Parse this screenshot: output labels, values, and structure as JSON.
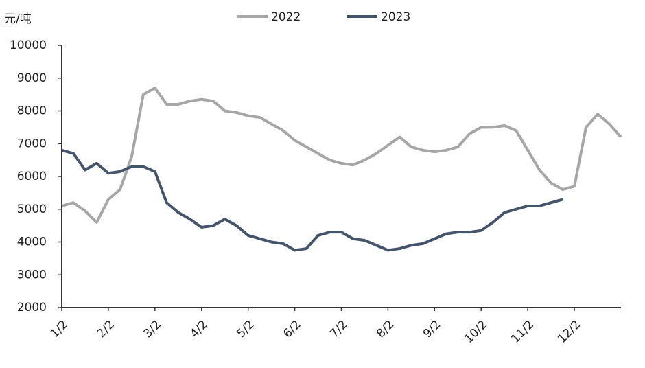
{
  "chart_data": {
    "type": "line",
    "y_label": "元/吨",
    "categories": [
      "1/2",
      null,
      null,
      null,
      "2/2",
      null,
      null,
      null,
      "3/2",
      null,
      null,
      null,
      "4/2",
      null,
      null,
      null,
      "5/2",
      null,
      null,
      null,
      "6/2",
      null,
      null,
      null,
      "7/2",
      null,
      null,
      null,
      "8/2",
      null,
      null,
      null,
      "9/2",
      null,
      null,
      null,
      "10/2",
      null,
      null,
      null,
      "11/2",
      null,
      null,
      null,
      "12/2",
      null,
      null,
      null,
      null
    ],
    "series": [
      {
        "name": "2022",
        "color": "#a6a6a6",
        "values": [
          5100,
          5200,
          4950,
          4600,
          5300,
          5600,
          6600,
          8500,
          8700,
          8200,
          8200,
          8300,
          8350,
          8300,
          8000,
          7950,
          7850,
          7800,
          7600,
          7400,
          7100,
          6900,
          6700,
          6500,
          6400,
          6350,
          6500,
          6700,
          6950,
          7200,
          6900,
          6800,
          6750,
          6800,
          6900,
          7300,
          7500,
          7500,
          7550,
          7400,
          6800,
          6200,
          5800,
          5600,
          5700,
          7500,
          7900,
          7600,
          7200
        ]
      },
      {
        "name": "2023",
        "color": "#44546a",
        "values": [
          6800,
          6700,
          6200,
          6400,
          6100,
          6150,
          6300,
          6300,
          6150,
          5200,
          4900,
          4700,
          4450,
          4500,
          4700,
          4500,
          4200,
          4100,
          4000,
          3950,
          3750,
          3800,
          4200,
          4300,
          4300,
          4100,
          4050,
          3900,
          3750,
          3800,
          3900,
          3950,
          4100,
          4250,
          4300,
          4300,
          4350,
          4600,
          4900,
          5000,
          5100,
          5100,
          5200,
          5300,
          null,
          null,
          null,
          null,
          null
        ]
      }
    ],
    "ylim": [
      2000,
      10000
    ],
    "yticks": [
      2000,
      3000,
      4000,
      5000,
      6000,
      7000,
      8000,
      9000,
      10000
    ],
    "grid": false
  }
}
